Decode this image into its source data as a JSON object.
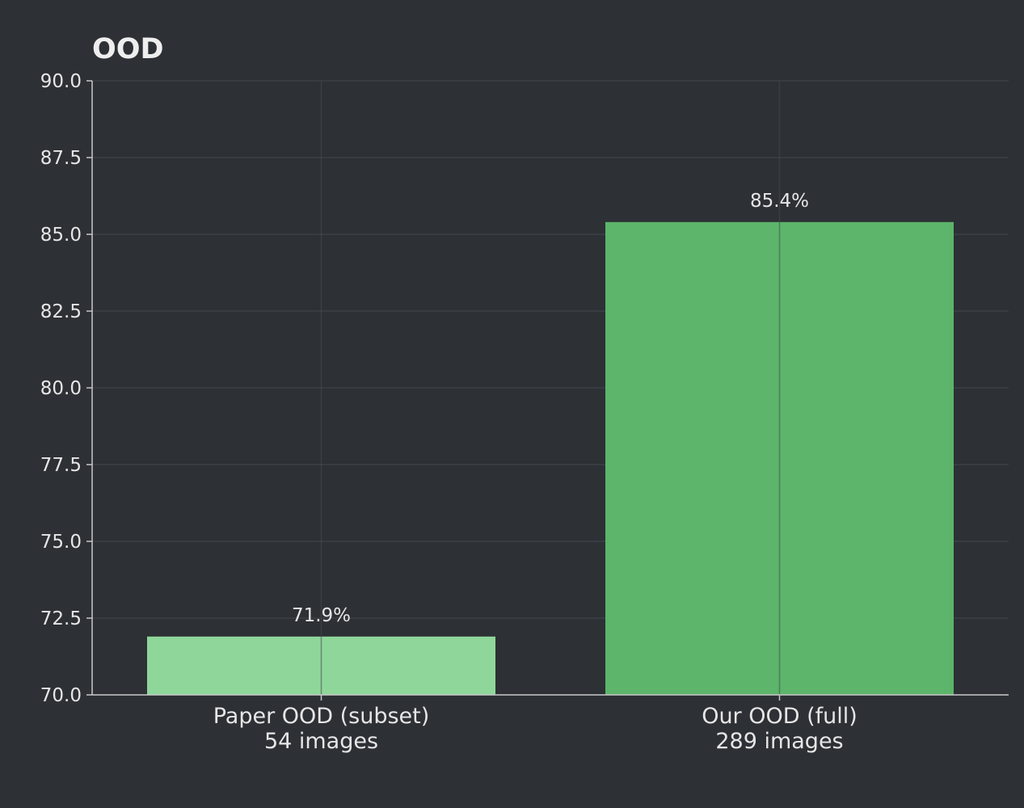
{
  "chart_data": {
    "type": "bar",
    "title": "OOD",
    "xlabel": "",
    "ylabel": "",
    "ylim": [
      70.0,
      90.0
    ],
    "yticks": [
      "70.0",
      "72.5",
      "75.0",
      "77.5",
      "80.0",
      "82.5",
      "85.0",
      "87.5",
      "90.0"
    ],
    "categories": [
      [
        "Paper OOD (subset)",
        "54 images"
      ],
      [
        "Our OOD (full)",
        "289 images"
      ]
    ],
    "values": [
      71.9,
      85.4
    ],
    "value_labels": [
      "71.9%",
      "85.4%"
    ],
    "bar_colors": [
      "#8fd69a",
      "#5cb56a"
    ],
    "grid": true,
    "legend": "none"
  },
  "colors": {
    "background": "#2d3035",
    "text": "#e6e6e6",
    "grid": "#3d4147",
    "axis": "#c8c8c8"
  }
}
